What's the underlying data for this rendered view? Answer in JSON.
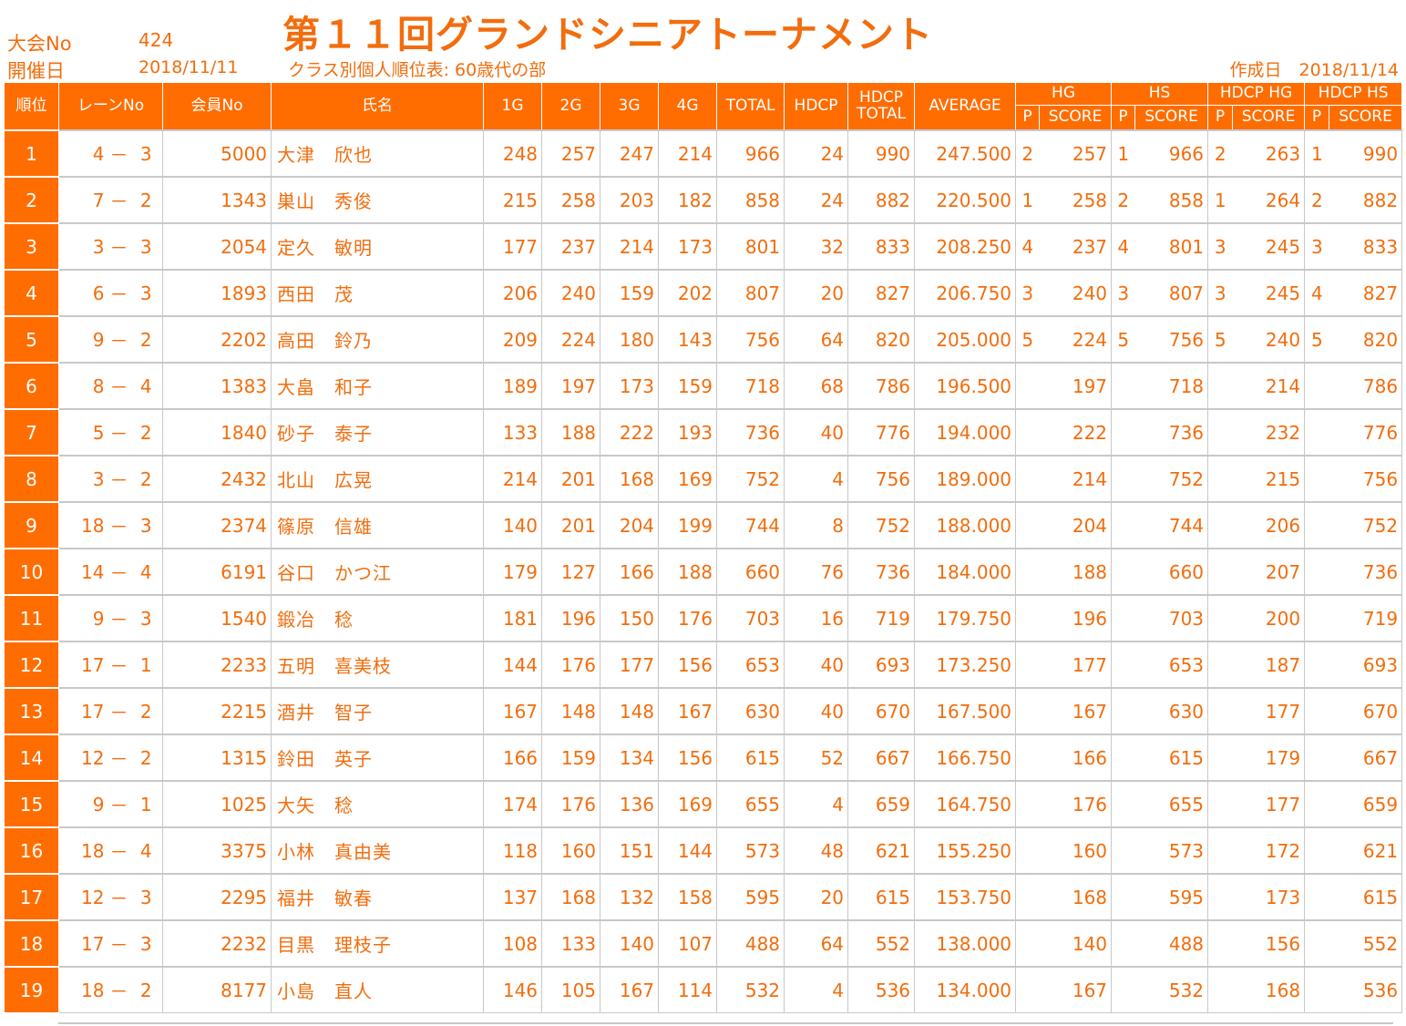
{
  "meta": {
    "tournament_no_label": "大会No",
    "tournament_no": "424",
    "date_label": "開催日",
    "date": "2018/11/11",
    "title": "第１１回グランドシニアトーナメント",
    "subtitle": "クラス別個人順位表: 60歳代の部",
    "created": "作成日　2018/11/14"
  },
  "headers": {
    "rank": "順位",
    "lane": "レーンNo",
    "member": "会員No",
    "name": "氏名",
    "g1": "1G",
    "g2": "2G",
    "g3": "3G",
    "g4": "4G",
    "total": "TOTAL",
    "hdcp": "HDCP",
    "hdcp_total_1": "HDCP",
    "hdcp_total_2": "TOTAL",
    "average": "AVERAGE",
    "hg": "HG",
    "hs": "HS",
    "hdcp_hg": "HDCP HG",
    "hdcp_hs": "HDCP HS",
    "p": "P",
    "score": "SCORE"
  },
  "rows": [
    {
      "rank": "1",
      "lane_a": "4",
      "lane_dash": "－",
      "lane_b": "3",
      "member": "5000",
      "name": "大津　欣也",
      "g1": "248",
      "g2": "257",
      "g3": "247",
      "g4": "214",
      "total": "966",
      "hdcp": "24",
      "hdcp_total": "990",
      "average": "247.500",
      "hg_p": "2",
      "hg": "257",
      "hs_p": "1",
      "hs": "966",
      "hhg_p": "2",
      "hhg": "263",
      "hhs_p": "1",
      "hhs": "990"
    },
    {
      "rank": "2",
      "lane_a": "7",
      "lane_dash": "－",
      "lane_b": "2",
      "member": "1343",
      "name": "巣山　秀俊",
      "g1": "215",
      "g2": "258",
      "g3": "203",
      "g4": "182",
      "total": "858",
      "hdcp": "24",
      "hdcp_total": "882",
      "average": "220.500",
      "hg_p": "1",
      "hg": "258",
      "hs_p": "2",
      "hs": "858",
      "hhg_p": "1",
      "hhg": "264",
      "hhs_p": "2",
      "hhs": "882"
    },
    {
      "rank": "3",
      "lane_a": "3",
      "lane_dash": "－",
      "lane_b": "3",
      "member": "2054",
      "name": "定久　敏明",
      "g1": "177",
      "g2": "237",
      "g3": "214",
      "g4": "173",
      "total": "801",
      "hdcp": "32",
      "hdcp_total": "833",
      "average": "208.250",
      "hg_p": "4",
      "hg": "237",
      "hs_p": "4",
      "hs": "801",
      "hhg_p": "3",
      "hhg": "245",
      "hhs_p": "3",
      "hhs": "833"
    },
    {
      "rank": "4",
      "lane_a": "6",
      "lane_dash": "－",
      "lane_b": "3",
      "member": "1893",
      "name": "西田　茂",
      "g1": "206",
      "g2": "240",
      "g3": "159",
      "g4": "202",
      "total": "807",
      "hdcp": "20",
      "hdcp_total": "827",
      "average": "206.750",
      "hg_p": "3",
      "hg": "240",
      "hs_p": "3",
      "hs": "807",
      "hhg_p": "3",
      "hhg": "245",
      "hhs_p": "4",
      "hhs": "827"
    },
    {
      "rank": "5",
      "lane_a": "9",
      "lane_dash": "－",
      "lane_b": "2",
      "member": "2202",
      "name": "高田　鈴乃",
      "g1": "209",
      "g2": "224",
      "g3": "180",
      "g4": "143",
      "total": "756",
      "hdcp": "64",
      "hdcp_total": "820",
      "average": "205.000",
      "hg_p": "5",
      "hg": "224",
      "hs_p": "5",
      "hs": "756",
      "hhg_p": "5",
      "hhg": "240",
      "hhs_p": "5",
      "hhs": "820"
    },
    {
      "rank": "6",
      "lane_a": "8",
      "lane_dash": "－",
      "lane_b": "4",
      "member": "1383",
      "name": "大畠　和子",
      "g1": "189",
      "g2": "197",
      "g3": "173",
      "g4": "159",
      "total": "718",
      "hdcp": "68",
      "hdcp_total": "786",
      "average": "196.500",
      "hg_p": "",
      "hg": "197",
      "hs_p": "",
      "hs": "718",
      "hhg_p": "",
      "hhg": "214",
      "hhs_p": "",
      "hhs": "786"
    },
    {
      "rank": "7",
      "lane_a": "5",
      "lane_dash": "－",
      "lane_b": "2",
      "member": "1840",
      "name": "砂子　泰子",
      "g1": "133",
      "g2": "188",
      "g3": "222",
      "g4": "193",
      "total": "736",
      "hdcp": "40",
      "hdcp_total": "776",
      "average": "194.000",
      "hg_p": "",
      "hg": "222",
      "hs_p": "",
      "hs": "736",
      "hhg_p": "",
      "hhg": "232",
      "hhs_p": "",
      "hhs": "776"
    },
    {
      "rank": "8",
      "lane_a": "3",
      "lane_dash": "－",
      "lane_b": "2",
      "member": "2432",
      "name": "北山　広晃",
      "g1": "214",
      "g2": "201",
      "g3": "168",
      "g4": "169",
      "total": "752",
      "hdcp": "4",
      "hdcp_total": "756",
      "average": "189.000",
      "hg_p": "",
      "hg": "214",
      "hs_p": "",
      "hs": "752",
      "hhg_p": "",
      "hhg": "215",
      "hhs_p": "",
      "hhs": "756"
    },
    {
      "rank": "9",
      "lane_a": "18",
      "lane_dash": "－",
      "lane_b": "3",
      "member": "2374",
      "name": "篠原　信雄",
      "g1": "140",
      "g2": "201",
      "g3": "204",
      "g4": "199",
      "total": "744",
      "hdcp": "8",
      "hdcp_total": "752",
      "average": "188.000",
      "hg_p": "",
      "hg": "204",
      "hs_p": "",
      "hs": "744",
      "hhg_p": "",
      "hhg": "206",
      "hhs_p": "",
      "hhs": "752"
    },
    {
      "rank": "10",
      "lane_a": "14",
      "lane_dash": "－",
      "lane_b": "4",
      "member": "6191",
      "name": "谷口　かつ江",
      "g1": "179",
      "g2": "127",
      "g3": "166",
      "g4": "188",
      "total": "660",
      "hdcp": "76",
      "hdcp_total": "736",
      "average": "184.000",
      "hg_p": "",
      "hg": "188",
      "hs_p": "",
      "hs": "660",
      "hhg_p": "",
      "hhg": "207",
      "hhs_p": "",
      "hhs": "736"
    },
    {
      "rank": "11",
      "lane_a": "9",
      "lane_dash": "－",
      "lane_b": "3",
      "member": "1540",
      "name": "鍛冶　稔",
      "g1": "181",
      "g2": "196",
      "g3": "150",
      "g4": "176",
      "total": "703",
      "hdcp": "16",
      "hdcp_total": "719",
      "average": "179.750",
      "hg_p": "",
      "hg": "196",
      "hs_p": "",
      "hs": "703",
      "hhg_p": "",
      "hhg": "200",
      "hhs_p": "",
      "hhs": "719"
    },
    {
      "rank": "12",
      "lane_a": "17",
      "lane_dash": "－",
      "lane_b": "1",
      "member": "2233",
      "name": "五明　喜美枝",
      "g1": "144",
      "g2": "176",
      "g3": "177",
      "g4": "156",
      "total": "653",
      "hdcp": "40",
      "hdcp_total": "693",
      "average": "173.250",
      "hg_p": "",
      "hg": "177",
      "hs_p": "",
      "hs": "653",
      "hhg_p": "",
      "hhg": "187",
      "hhs_p": "",
      "hhs": "693"
    },
    {
      "rank": "13",
      "lane_a": "17",
      "lane_dash": "－",
      "lane_b": "2",
      "member": "2215",
      "name": "酒井　智子",
      "g1": "167",
      "g2": "148",
      "g3": "148",
      "g4": "167",
      "total": "630",
      "hdcp": "40",
      "hdcp_total": "670",
      "average": "167.500",
      "hg_p": "",
      "hg": "167",
      "hs_p": "",
      "hs": "630",
      "hhg_p": "",
      "hhg": "177",
      "hhs_p": "",
      "hhs": "670"
    },
    {
      "rank": "14",
      "lane_a": "12",
      "lane_dash": "－",
      "lane_b": "2",
      "member": "1315",
      "name": "鈴田　英子",
      "g1": "166",
      "g2": "159",
      "g3": "134",
      "g4": "156",
      "total": "615",
      "hdcp": "52",
      "hdcp_total": "667",
      "average": "166.750",
      "hg_p": "",
      "hg": "166",
      "hs_p": "",
      "hs": "615",
      "hhg_p": "",
      "hhg": "179",
      "hhs_p": "",
      "hhs": "667"
    },
    {
      "rank": "15",
      "lane_a": "9",
      "lane_dash": "－",
      "lane_b": "1",
      "member": "1025",
      "name": "大矢　稔",
      "g1": "174",
      "g2": "176",
      "g3": "136",
      "g4": "169",
      "total": "655",
      "hdcp": "4",
      "hdcp_total": "659",
      "average": "164.750",
      "hg_p": "",
      "hg": "176",
      "hs_p": "",
      "hs": "655",
      "hhg_p": "",
      "hhg": "177",
      "hhs_p": "",
      "hhs": "659"
    },
    {
      "rank": "16",
      "lane_a": "18",
      "lane_dash": "－",
      "lane_b": "4",
      "member": "3375",
      "name": "小林　真由美",
      "g1": "118",
      "g2": "160",
      "g3": "151",
      "g4": "144",
      "total": "573",
      "hdcp": "48",
      "hdcp_total": "621",
      "average": "155.250",
      "hg_p": "",
      "hg": "160",
      "hs_p": "",
      "hs": "573",
      "hhg_p": "",
      "hhg": "172",
      "hhs_p": "",
      "hhs": "621"
    },
    {
      "rank": "17",
      "lane_a": "12",
      "lane_dash": "－",
      "lane_b": "3",
      "member": "2295",
      "name": "福井　敏春",
      "g1": "137",
      "g2": "168",
      "g3": "132",
      "g4": "158",
      "total": "595",
      "hdcp": "20",
      "hdcp_total": "615",
      "average": "153.750",
      "hg_p": "",
      "hg": "168",
      "hs_p": "",
      "hs": "595",
      "hhg_p": "",
      "hhg": "173",
      "hhs_p": "",
      "hhs": "615"
    },
    {
      "rank": "18",
      "lane_a": "17",
      "lane_dash": "－",
      "lane_b": "3",
      "member": "2232",
      "name": "目黒　理枝子",
      "g1": "108",
      "g2": "133",
      "g3": "140",
      "g4": "107",
      "total": "488",
      "hdcp": "64",
      "hdcp_total": "552",
      "average": "138.000",
      "hg_p": "",
      "hg": "140",
      "hs_p": "",
      "hs": "488",
      "hhg_p": "",
      "hhg": "156",
      "hhs_p": "",
      "hhs": "552"
    },
    {
      "rank": "19",
      "lane_a": "18",
      "lane_dash": "－",
      "lane_b": "2",
      "member": "8177",
      "name": "小島　直人",
      "g1": "146",
      "g2": "105",
      "g3": "167",
      "g4": "114",
      "total": "532",
      "hdcp": "4",
      "hdcp_total": "536",
      "average": "134.000",
      "hg_p": "",
      "hg": "167",
      "hs_p": "",
      "hs": "532",
      "hhg_p": "",
      "hhg": "168",
      "hhs_p": "",
      "hhs": "536"
    }
  ]
}
